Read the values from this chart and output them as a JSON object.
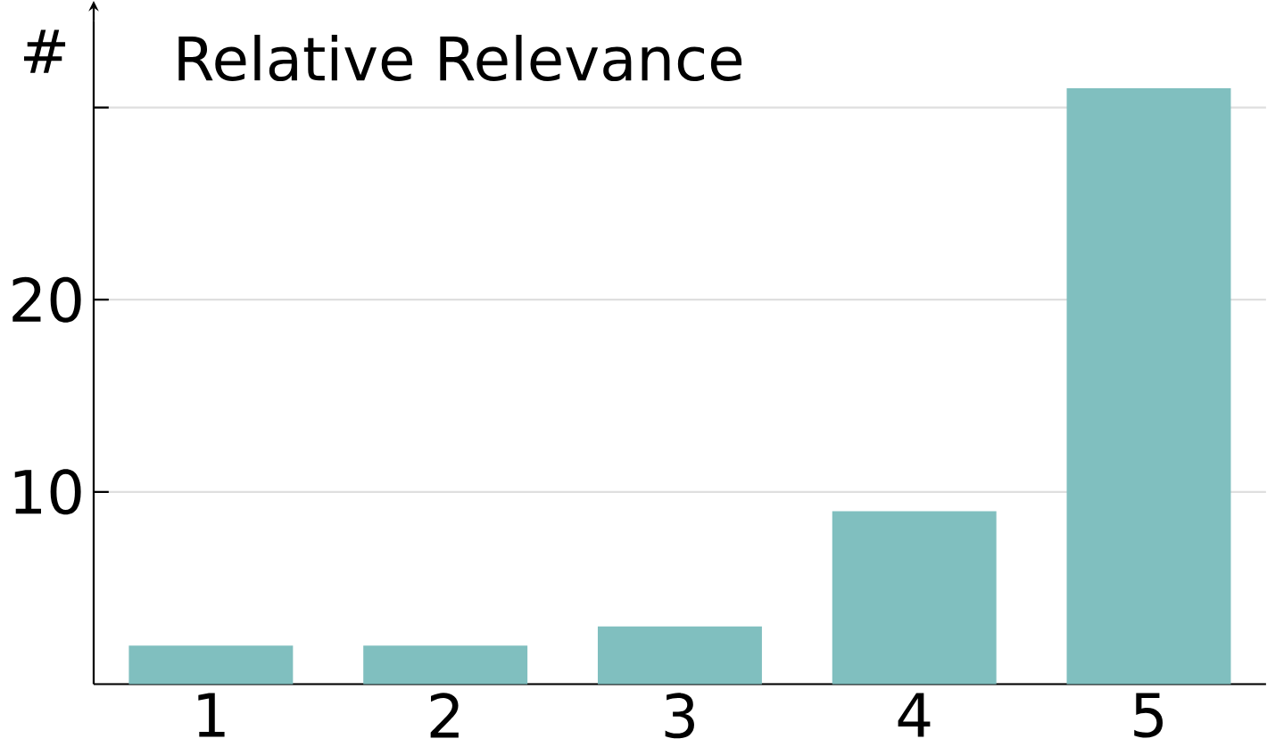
{
  "chart_data": {
    "type": "bar",
    "title": "Relative Relevance",
    "ylabel": "#",
    "categories": [
      "1",
      "2",
      "3",
      "4",
      "5"
    ],
    "values": [
      2,
      2,
      3,
      9,
      31
    ],
    "color": "#80bfbf",
    "ylim": [
      0,
      34.5
    ],
    "yticks": [
      10,
      20,
      {
        "value": 30,
        "label": null
      }
    ],
    "grid": "y"
  }
}
